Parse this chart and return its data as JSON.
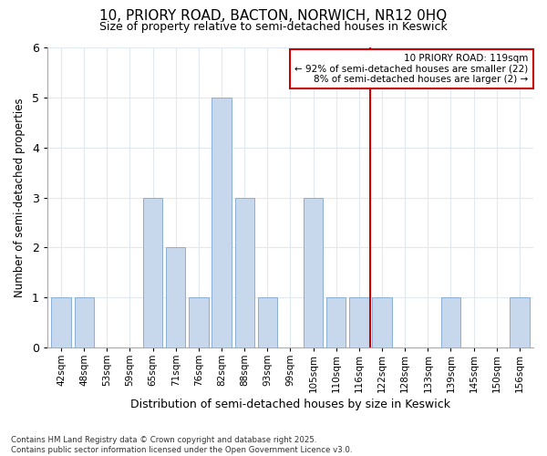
{
  "title1": "10, PRIORY ROAD, BACTON, NORWICH, NR12 0HQ",
  "title2": "Size of property relative to semi-detached houses in Keswick",
  "xlabel": "Distribution of semi-detached houses by size in Keswick",
  "ylabel": "Number of semi-detached properties",
  "categories": [
    "42sqm",
    "48sqm",
    "53sqm",
    "59sqm",
    "65sqm",
    "71sqm",
    "76sqm",
    "82sqm",
    "88sqm",
    "93sqm",
    "99sqm",
    "105sqm",
    "110sqm",
    "116sqm",
    "122sqm",
    "128sqm",
    "133sqm",
    "139sqm",
    "145sqm",
    "150sqm",
    "156sqm"
  ],
  "values": [
    1,
    1,
    0,
    0,
    3,
    2,
    1,
    5,
    3,
    1,
    0,
    3,
    1,
    1,
    1,
    0,
    0,
    1,
    0,
    0,
    1
  ],
  "bar_color": "#c8d8ec",
  "bar_edge_color": "#8aafd4",
  "vline_index": 14,
  "annotation_title": "10 PRIORY ROAD: 119sqm",
  "annotation_line1": "← 92% of semi-detached houses are smaller (22)",
  "annotation_line2": "8% of semi-detached houses are larger (2) →",
  "annotation_box_color": "#ffffff",
  "annotation_box_edge": "#cc0000",
  "vline_color": "#cc0000",
  "ylim": [
    0,
    6
  ],
  "background_color": "#ffffff",
  "grid_color": "#e0e8f0",
  "footer": "Contains HM Land Registry data © Crown copyright and database right 2025.\nContains public sector information licensed under the Open Government Licence v3.0."
}
